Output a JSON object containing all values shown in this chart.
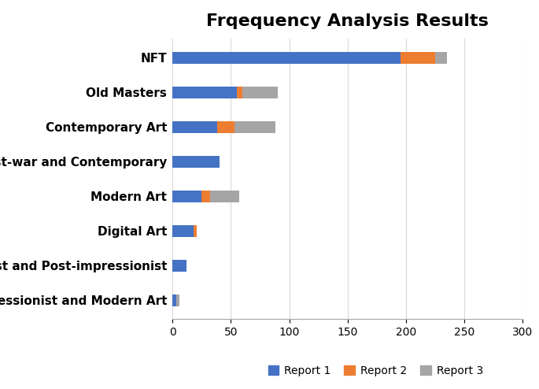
{
  "title": "Frqequency Analysis Results",
  "categories": [
    "Impressionist and Modern Art",
    "Impressionist and Post-impressionist",
    "Digital Art",
    "Modern Art",
    "Post-war and Contemporary",
    "Contemporary Art",
    "Old Masters",
    "NFT"
  ],
  "report1": [
    3,
    12,
    18,
    25,
    40,
    38,
    55,
    195
  ],
  "report2": [
    0,
    0,
    3,
    7,
    0,
    15,
    5,
    30
  ],
  "report3": [
    3,
    0,
    0,
    25,
    0,
    35,
    30,
    10
  ],
  "colors": {
    "report1": "#4472C4",
    "report2": "#ED7D31",
    "report3": "#A5A5A5"
  },
  "legend_labels": [
    "Report 1",
    "Report 2",
    "Report 3"
  ],
  "xlim": [
    0,
    300
  ],
  "xticks": [
    0,
    50,
    100,
    150,
    200,
    250,
    300
  ],
  "grid_color": "#D9D9D9",
  "figsize": [
    6.85,
    4.94
  ],
  "dpi": 100,
  "bar_height": 0.35,
  "title_fontsize": 16,
  "label_fontsize": 11,
  "tick_fontsize": 10
}
